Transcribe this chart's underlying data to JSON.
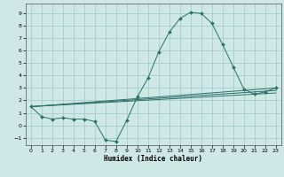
{
  "xlabel": "Humidex (Indice chaleur)",
  "background_color": "#cde8e5",
  "grid_color": "#a0c8c4",
  "line_color": "#2d7068",
  "xlim": [
    -0.5,
    23.5
  ],
  "ylim": [
    -1.6,
    9.8
  ],
  "xticks": [
    0,
    1,
    2,
    3,
    4,
    5,
    6,
    7,
    8,
    9,
    10,
    11,
    12,
    13,
    14,
    15,
    16,
    17,
    18,
    19,
    20,
    21,
    22,
    23
  ],
  "yticks": [
    -1,
    0,
    1,
    2,
    3,
    4,
    5,
    6,
    7,
    8,
    9
  ],
  "line1_x": [
    0,
    1,
    2,
    3,
    4,
    5,
    6,
    7,
    8,
    9,
    10,
    11,
    12,
    13,
    14,
    15,
    16,
    17,
    18,
    19,
    20,
    21,
    22,
    23
  ],
  "line1_y": [
    1.5,
    0.7,
    0.5,
    0.6,
    0.5,
    0.5,
    0.3,
    -1.2,
    -1.3,
    0.4,
    2.3,
    3.8,
    5.9,
    7.5,
    8.6,
    9.1,
    9.0,
    8.2,
    6.5,
    4.7,
    2.9,
    2.5,
    2.7,
    3.0
  ],
  "line2_x": [
    0,
    23
  ],
  "line2_y": [
    1.5,
    3.0
  ],
  "line3_x": [
    0,
    23
  ],
  "line3_y": [
    1.5,
    2.6
  ],
  "line4_x": [
    0,
    23
  ],
  "line4_y": [
    1.5,
    2.8
  ]
}
